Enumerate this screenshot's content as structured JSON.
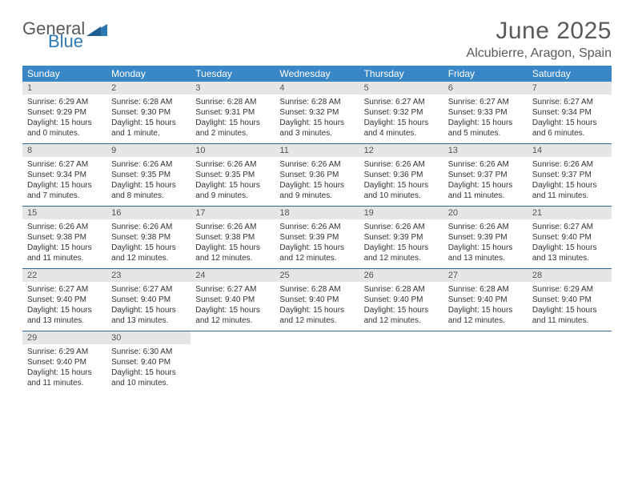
{
  "brand": {
    "word1": "General",
    "word2": "Blue",
    "word1_color": "#59595b",
    "word2_color": "#2d79b4",
    "triangle_color": "#2d79b4"
  },
  "title": "June 2025",
  "location": "Alcubierre, Aragon, Spain",
  "colors": {
    "header_bg": "#3a87c8",
    "header_fg": "#ffffff",
    "daynum_bg": "#e6e6e6",
    "rule": "#2d6ca3",
    "page_bg": "#ffffff"
  },
  "fonts": {
    "title_size": 30,
    "location_size": 16,
    "th_size": 12,
    "daynum_size": 11,
    "body_size": 10
  },
  "day_headers": [
    "Sunday",
    "Monday",
    "Tuesday",
    "Wednesday",
    "Thursday",
    "Friday",
    "Saturday"
  ],
  "weeks": [
    [
      {
        "n": "1",
        "sunrise": "Sunrise: 6:29 AM",
        "sunset": "Sunset: 9:29 PM",
        "daylight": "Daylight: 15 hours and 0 minutes."
      },
      {
        "n": "2",
        "sunrise": "Sunrise: 6:28 AM",
        "sunset": "Sunset: 9:30 PM",
        "daylight": "Daylight: 15 hours and 1 minute."
      },
      {
        "n": "3",
        "sunrise": "Sunrise: 6:28 AM",
        "sunset": "Sunset: 9:31 PM",
        "daylight": "Daylight: 15 hours and 2 minutes."
      },
      {
        "n": "4",
        "sunrise": "Sunrise: 6:28 AM",
        "sunset": "Sunset: 9:32 PM",
        "daylight": "Daylight: 15 hours and 3 minutes."
      },
      {
        "n": "5",
        "sunrise": "Sunrise: 6:27 AM",
        "sunset": "Sunset: 9:32 PM",
        "daylight": "Daylight: 15 hours and 4 minutes."
      },
      {
        "n": "6",
        "sunrise": "Sunrise: 6:27 AM",
        "sunset": "Sunset: 9:33 PM",
        "daylight": "Daylight: 15 hours and 5 minutes."
      },
      {
        "n": "7",
        "sunrise": "Sunrise: 6:27 AM",
        "sunset": "Sunset: 9:34 PM",
        "daylight": "Daylight: 15 hours and 6 minutes."
      }
    ],
    [
      {
        "n": "8",
        "sunrise": "Sunrise: 6:27 AM",
        "sunset": "Sunset: 9:34 PM",
        "daylight": "Daylight: 15 hours and 7 minutes."
      },
      {
        "n": "9",
        "sunrise": "Sunrise: 6:26 AM",
        "sunset": "Sunset: 9:35 PM",
        "daylight": "Daylight: 15 hours and 8 minutes."
      },
      {
        "n": "10",
        "sunrise": "Sunrise: 6:26 AM",
        "sunset": "Sunset: 9:35 PM",
        "daylight": "Daylight: 15 hours and 9 minutes."
      },
      {
        "n": "11",
        "sunrise": "Sunrise: 6:26 AM",
        "sunset": "Sunset: 9:36 PM",
        "daylight": "Daylight: 15 hours and 9 minutes."
      },
      {
        "n": "12",
        "sunrise": "Sunrise: 6:26 AM",
        "sunset": "Sunset: 9:36 PM",
        "daylight": "Daylight: 15 hours and 10 minutes."
      },
      {
        "n": "13",
        "sunrise": "Sunrise: 6:26 AM",
        "sunset": "Sunset: 9:37 PM",
        "daylight": "Daylight: 15 hours and 11 minutes."
      },
      {
        "n": "14",
        "sunrise": "Sunrise: 6:26 AM",
        "sunset": "Sunset: 9:37 PM",
        "daylight": "Daylight: 15 hours and 11 minutes."
      }
    ],
    [
      {
        "n": "15",
        "sunrise": "Sunrise: 6:26 AM",
        "sunset": "Sunset: 9:38 PM",
        "daylight": "Daylight: 15 hours and 11 minutes."
      },
      {
        "n": "16",
        "sunrise": "Sunrise: 6:26 AM",
        "sunset": "Sunset: 9:38 PM",
        "daylight": "Daylight: 15 hours and 12 minutes."
      },
      {
        "n": "17",
        "sunrise": "Sunrise: 6:26 AM",
        "sunset": "Sunset: 9:38 PM",
        "daylight": "Daylight: 15 hours and 12 minutes."
      },
      {
        "n": "18",
        "sunrise": "Sunrise: 6:26 AM",
        "sunset": "Sunset: 9:39 PM",
        "daylight": "Daylight: 15 hours and 12 minutes."
      },
      {
        "n": "19",
        "sunrise": "Sunrise: 6:26 AM",
        "sunset": "Sunset: 9:39 PM",
        "daylight": "Daylight: 15 hours and 12 minutes."
      },
      {
        "n": "20",
        "sunrise": "Sunrise: 6:26 AM",
        "sunset": "Sunset: 9:39 PM",
        "daylight": "Daylight: 15 hours and 13 minutes."
      },
      {
        "n": "21",
        "sunrise": "Sunrise: 6:27 AM",
        "sunset": "Sunset: 9:40 PM",
        "daylight": "Daylight: 15 hours and 13 minutes."
      }
    ],
    [
      {
        "n": "22",
        "sunrise": "Sunrise: 6:27 AM",
        "sunset": "Sunset: 9:40 PM",
        "daylight": "Daylight: 15 hours and 13 minutes."
      },
      {
        "n": "23",
        "sunrise": "Sunrise: 6:27 AM",
        "sunset": "Sunset: 9:40 PM",
        "daylight": "Daylight: 15 hours and 13 minutes."
      },
      {
        "n": "24",
        "sunrise": "Sunrise: 6:27 AM",
        "sunset": "Sunset: 9:40 PM",
        "daylight": "Daylight: 15 hours and 12 minutes."
      },
      {
        "n": "25",
        "sunrise": "Sunrise: 6:28 AM",
        "sunset": "Sunset: 9:40 PM",
        "daylight": "Daylight: 15 hours and 12 minutes."
      },
      {
        "n": "26",
        "sunrise": "Sunrise: 6:28 AM",
        "sunset": "Sunset: 9:40 PM",
        "daylight": "Daylight: 15 hours and 12 minutes."
      },
      {
        "n": "27",
        "sunrise": "Sunrise: 6:28 AM",
        "sunset": "Sunset: 9:40 PM",
        "daylight": "Daylight: 15 hours and 12 minutes."
      },
      {
        "n": "28",
        "sunrise": "Sunrise: 6:29 AM",
        "sunset": "Sunset: 9:40 PM",
        "daylight": "Daylight: 15 hours and 11 minutes."
      }
    ],
    [
      {
        "n": "29",
        "sunrise": "Sunrise: 6:29 AM",
        "sunset": "Sunset: 9:40 PM",
        "daylight": "Daylight: 15 hours and 11 minutes."
      },
      {
        "n": "30",
        "sunrise": "Sunrise: 6:30 AM",
        "sunset": "Sunset: 9:40 PM",
        "daylight": "Daylight: 15 hours and 10 minutes."
      },
      null,
      null,
      null,
      null,
      null
    ]
  ]
}
